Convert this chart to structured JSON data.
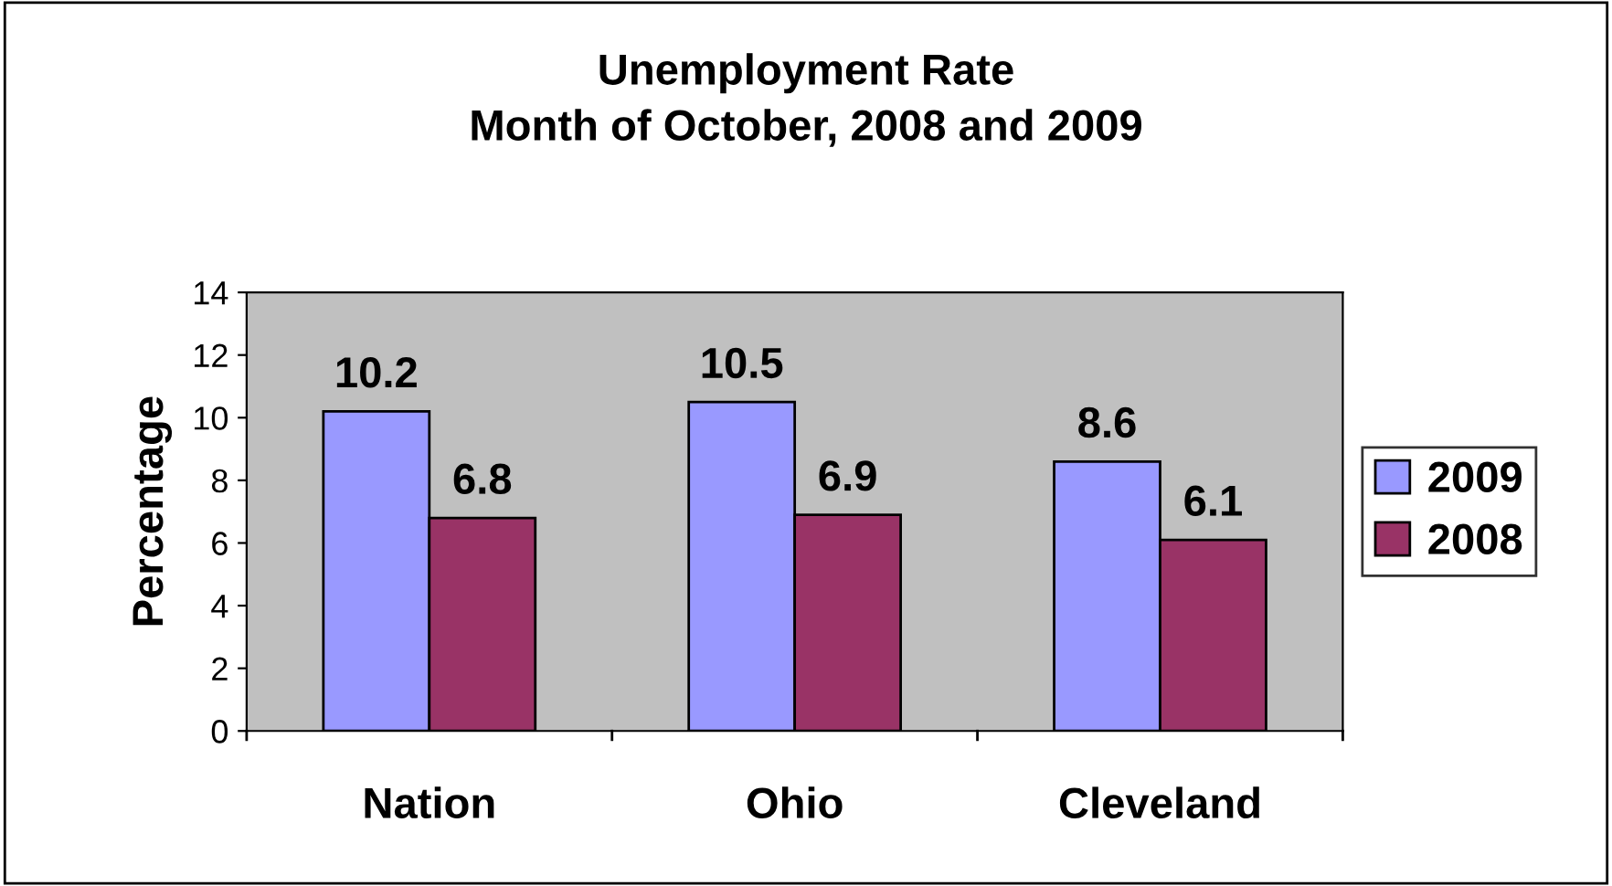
{
  "chart_data": {
    "type": "bar",
    "title": "Unemployment Rate\nMonth of October, 2008 and 2009",
    "ylabel": "Percentage",
    "categories": [
      "Nation",
      "Ohio",
      "Cleveland"
    ],
    "series": [
      {
        "name": "2009",
        "color": "#9999ff",
        "values": [
          10.2,
          10.5,
          8.6
        ]
      },
      {
        "name": "2008",
        "color": "#993366",
        "values": [
          6.8,
          6.9,
          6.1
        ]
      }
    ],
    "ylim": [
      0,
      14
    ],
    "yticks": [
      0,
      2,
      4,
      6,
      8,
      10,
      12,
      14
    ],
    "data_labels": true,
    "grid": false,
    "legend": "right"
  }
}
